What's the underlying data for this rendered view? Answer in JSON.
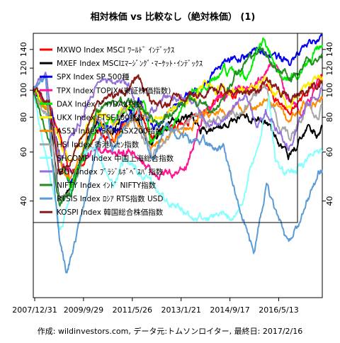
{
  "chart_data": {
    "type": "line",
    "title": "相対株価 vs 比較なし（絶対株価） (1)",
    "credit": "作成: wildinvestors.com, データ元:トムソンロイター, 最終日: 2017/2/16",
    "x_tick_labels": [
      "2007/12/31",
      "2009/9/29",
      "2011/5/26",
      "2013/1/21",
      "2014/9/17",
      "2016/5/13"
    ],
    "x_start": "2007-12-31",
    "x_end": "2017-02-16",
    "y_scale": "log",
    "ylim": [
      18,
      160
    ],
    "y_ticks": [
      40,
      60,
      80,
      100,
      120,
      140
    ],
    "grid": false,
    "legend_position": "top-left",
    "series": [
      {
        "name": "MXWO Index MSCI ﾜｰﾙﾄﾞ ｲﾝﾃﾞｯｸｽ",
        "color": "#ff0000",
        "x": [
          "2007-12-31",
          "2008-06-30",
          "2008-12-31",
          "2009-03-09",
          "2009-12-31",
          "2010-06-30",
          "2011-04-30",
          "2011-10-03",
          "2012-06-01",
          "2012-12-31",
          "2013-12-31",
          "2014-12-31",
          "2015-05-31",
          "2015-09-29",
          "2016-02-11",
          "2016-06-30",
          "2016-12-31",
          "2017-02-16"
        ],
        "values": [
          100,
          87,
          60,
          45,
          72,
          66,
          85,
          66,
          73,
          79,
          97,
          100,
          105,
          89,
          84,
          94,
          105,
          111
        ]
      },
      {
        "name": "MXEF Index MSCIｴﾏｰｼﾞﾝｸﾞ･ﾏｰｹｯﾄ･ｲﾝﾃﾞｯｸｽ",
        "color": "#000000",
        "x": [
          "2007-12-31",
          "2008-06-30",
          "2008-10-27",
          "2009-03-09",
          "2009-12-31",
          "2010-06-30",
          "2010-12-31",
          "2011-10-03",
          "2012-04-01",
          "2012-12-31",
          "2013-06-24",
          "2014-09-01",
          "2015-04-27",
          "2015-09-29",
          "2016-01-21",
          "2016-09-08",
          "2016-12-31",
          "2017-02-16"
        ],
        "values": [
          100,
          85,
          40,
          45,
          78,
          72,
          87,
          66,
          76,
          80,
          70,
          80,
          77,
          63,
          58,
          72,
          67,
          74
        ]
      },
      {
        "name": "SPX Index SP 500種",
        "color": "#0000ee",
        "x": [
          "2007-12-31",
          "2008-06-30",
          "2008-11-20",
          "2009-03-09",
          "2009-12-31",
          "2010-07-02",
          "2011-04-29",
          "2011-10-03",
          "2012-12-31",
          "2013-12-31",
          "2014-12-31",
          "2015-08-25",
          "2016-02-11",
          "2016-08-15",
          "2016-12-31",
          "2017-02-16"
        ],
        "values": [
          100,
          87,
          56,
          47,
          76,
          70,
          92,
          74,
          97,
          125,
          138,
          130,
          125,
          147,
          152,
          158
        ]
      },
      {
        "name": "TPX Index TOPIX (東証株価指数)",
        "color": "#ff1493",
        "x": [
          "2007-12-31",
          "2008-06-30",
          "2008-10-28",
          "2009-03-10",
          "2009-12-31",
          "2010-08-31",
          "2011-03-15",
          "2011-11-25",
          "2012-06-04",
          "2012-11-14",
          "2013-05-22",
          "2013-12-31",
          "2014-12-31",
          "2015-08-10",
          "2016-02-12",
          "2016-06-24",
          "2016-12-31",
          "2017-02-16"
        ],
        "values": [
          100,
          88,
          55,
          50,
          63,
          58,
          60,
          50,
          50,
          54,
          85,
          95,
          105,
          125,
          92,
          83,
          106,
          108
        ]
      },
      {
        "name": "DAX Index ﾄﾞｲﾂDAX指数",
        "color": "#00ee00",
        "x": [
          "2007-12-31",
          "2008-06-30",
          "2008-11-21",
          "2009-03-09",
          "2009-12-31",
          "2010-12-31",
          "2011-07-01",
          "2011-09-12",
          "2012-06-01",
          "2012-12-31",
          "2013-12-31",
          "2014-10-16",
          "2015-04-10",
          "2015-09-24",
          "2016-02-11",
          "2016-06-27",
          "2016-12-31",
          "2017-02-16"
        ],
        "values": [
          100,
          82,
          55,
          45,
          74,
          87,
          92,
          65,
          76,
          96,
          118,
          112,
          150,
          120,
          110,
          117,
          142,
          146
        ]
      },
      {
        "name": "UKX Index FTSE100指数",
        "color": "#ffee00",
        "x": [
          "2007-12-31",
          "2008-06-30",
          "2008-11-21",
          "2009-03-03",
          "2009-12-31",
          "2010-07-01",
          "2011-02-15",
          "2011-09-22",
          "2012-12-31",
          "2013-05-22",
          "2014-12-31",
          "2015-04-27",
          "2016-02-11",
          "2016-07-29",
          "2016-12-31",
          "2017-02-16"
        ],
        "values": [
          100,
          87,
          62,
          55,
          83,
          75,
          92,
          78,
          92,
          102,
          100,
          108,
          87,
          103,
          110,
          112
        ]
      },
      {
        "name": "AS51 Index S&P/ASX200指数",
        "color": "#ff8c00",
        "x": [
          "2007-12-31",
          "2008-06-30",
          "2008-11-21",
          "2009-03-06",
          "2009-12-31",
          "2010-07-01",
          "2011-04-11",
          "2011-09-22",
          "2012-12-31",
          "2013-05-14",
          "2014-12-31",
          "2015-04-28",
          "2016-02-09",
          "2016-08-01",
          "2016-12-31",
          "2017-02-16"
        ],
        "values": [
          100,
          83,
          55,
          50,
          77,
          68,
          78,
          63,
          75,
          83,
          88,
          94,
          77,
          89,
          92,
          93
        ]
      },
      {
        "name": "HSI Index 香港ﾊﾝｾﾝ指数",
        "color": "#a6a6a6",
        "x": [
          "2007-12-31",
          "2008-06-30",
          "2008-10-27",
          "2009-03-09",
          "2009-12-31",
          "2010-07-01",
          "2010-11-08",
          "2011-10-04",
          "2012-12-31",
          "2013-06-25",
          "2014-09-03",
          "2015-04-28",
          "2015-09-29",
          "2016-02-12",
          "2016-09-09",
          "2016-12-31",
          "2017-02-16"
        ],
        "values": [
          100,
          80,
          40,
          43,
          80,
          72,
          87,
          59,
          82,
          75,
          87,
          102,
          75,
          67,
          87,
          79,
          88
        ]
      },
      {
        "name": "SHCOMP Index 中国上海総合指数",
        "color": "#87ffff",
        "x": [
          "2007-12-31",
          "2008-06-30",
          "2008-10-28",
          "2009-08-04",
          "2009-12-31",
          "2010-07-05",
          "2010-11-08",
          "2011-06-30",
          "2012-01-06",
          "2012-12-03",
          "2013-06-27",
          "2014-06-30",
          "2014-12-31",
          "2015-06-12",
          "2015-08-26",
          "2016-01-28",
          "2016-12-31",
          "2017-02-16"
        ],
        "values": [
          100,
          52,
          31,
          60,
          60,
          45,
          55,
          50,
          42,
          36,
          35,
          36,
          58,
          93,
          54,
          49,
          59,
          60
        ]
      },
      {
        "name": "IBOV Index ﾌﾞﾗｼﾞﾙﾎﾞﾍﾞｽﾊﾟ指数",
        "color": "#9370db",
        "x": [
          "2007-12-31",
          "2008-05-20",
          "2008-10-27",
          "2009-12-31",
          "2010-11-04",
          "2011-08-08",
          "2012-03-13",
          "2012-12-31",
          "2013-07-03",
          "2014-09-02",
          "2015-01-26",
          "2015-05-04",
          "2016-01-26",
          "2016-08-01",
          "2016-12-31",
          "2017-02-16"
        ],
        "values": [
          100,
          115,
          55,
          103,
          110,
          80,
          96,
          94,
          72,
          96,
          72,
          85,
          61,
          88,
          94,
          104
        ]
      },
      {
        "name": "NIFTY Index ｲﾝﾄﾞ NIFTY指数",
        "color": "#228b22",
        "x": [
          "2007-12-31",
          "2008-06-30",
          "2008-10-27",
          "2009-03-09",
          "2009-12-31",
          "2010-11-05",
          "2011-12-20",
          "2012-12-31",
          "2013-08-28",
          "2014-05-16",
          "2015-03-03",
          "2015-09-07",
          "2016-02-29",
          "2016-09-07",
          "2016-12-31",
          "2017-02-16"
        ],
        "values": [
          100,
          67,
          40,
          42,
          82,
          95,
          75,
          95,
          82,
          112,
          140,
          118,
          110,
          130,
          125,
          133
        ]
      },
      {
        "name": "RTSIS Index ﾛｼｱ RTS指数 USD",
        "color": "#5b9bd5",
        "x": [
          "2007-12-31",
          "2008-05-19",
          "2008-10-24",
          "2009-01-23",
          "2009-12-31",
          "2010-04-12",
          "2010-07-01",
          "2011-04-11",
          "2011-10-04",
          "2012-03-13",
          "2012-12-31",
          "2013-12-31",
          "2014-03-14",
          "2014-12-16",
          "2015-05-15",
          "2016-01-20",
          "2016-12-31",
          "2017-02-16"
        ],
        "values": [
          100,
          107,
          30,
          22,
          62,
          75,
          60,
          90,
          56,
          74,
          66,
          62,
          50,
          26,
          46,
          28,
          50,
          52
        ]
      },
      {
        "name": "KOSPI Index 韓国総合株価指数",
        "color": "#8b1a1a",
        "x": [
          "2007-12-31",
          "2008-06-30",
          "2008-10-24",
          "2009-03-03",
          "2009-12-31",
          "2010-12-31",
          "2011-04-27",
          "2011-09-26",
          "2012-12-31",
          "2013-12-31",
          "2014-12-31",
          "2015-04-23",
          "2016-02-12",
          "2016-12-31",
          "2017-02-16"
        ],
        "values": [
          100,
          90,
          50,
          55,
          90,
          100,
          110,
          88,
          96,
          101,
          97,
          108,
          95,
          103,
          106
        ]
      }
    ]
  }
}
